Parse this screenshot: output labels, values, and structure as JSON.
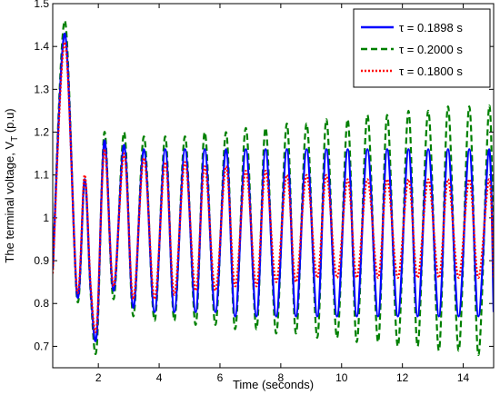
{
  "chart_data": {
    "type": "line",
    "xlabel": "Time (seconds)",
    "ylabel_main": "The terminal voltage, V",
    "ylabel_sub": "T",
    "ylabel_unit": " (p.u)",
    "xlim": [
      0.5,
      15
    ],
    "ylim": [
      0.65,
      1.5
    ],
    "xticks": [
      "2",
      "4",
      "6",
      "8",
      "10",
      "12",
      "14"
    ],
    "yticks": [
      "0.7",
      "0.8",
      "0.9",
      "1",
      "1.1",
      "1.2",
      "1.3",
      "1.4",
      "1.5"
    ],
    "legend_position": "top-right",
    "series": [
      {
        "name": "τ = 0.1898 s",
        "color": "#0000ff",
        "style": "solid",
        "x": [
          0.5,
          0.9,
          1.3,
          1.55,
          1.75,
          1.95,
          2.2,
          2.5,
          2.85,
          3.15,
          3.5,
          3.85,
          4.2,
          4.5,
          4.85,
          5.2,
          5.5,
          5.85,
          6.2,
          6.5,
          6.85,
          7.2,
          7.5,
          7.85,
          8.2,
          8.5,
          8.85,
          9.2,
          9.5,
          9.85,
          10.2,
          10.5,
          10.85,
          11.2,
          11.5,
          11.85,
          12.2,
          12.5,
          12.85,
          13.2,
          13.5,
          13.85,
          14.2,
          14.5,
          14.85,
          15.0
        ],
        "y": [
          0.88,
          1.43,
          0.82,
          1.09,
          0.83,
          0.73,
          1.18,
          0.83,
          1.17,
          0.79,
          1.16,
          0.78,
          1.16,
          0.78,
          1.16,
          0.78,
          1.16,
          0.78,
          1.16,
          0.77,
          1.16,
          0.77,
          1.16,
          0.77,
          1.16,
          0.77,
          1.16,
          0.77,
          1.16,
          0.77,
          1.16,
          0.77,
          1.16,
          0.77,
          1.16,
          0.77,
          1.16,
          0.77,
          1.16,
          0.77,
          1.16,
          0.77,
          1.16,
          0.77,
          1.16,
          0.78
        ]
      },
      {
        "name": "τ = 0.2000 s",
        "color": "#008000",
        "style": "dashed",
        "x": [
          0.5,
          0.9,
          1.3,
          1.55,
          1.75,
          1.95,
          2.2,
          2.5,
          2.85,
          3.15,
          3.5,
          3.85,
          4.2,
          4.5,
          4.85,
          5.2,
          5.5,
          5.85,
          6.2,
          6.5,
          6.85,
          7.2,
          7.5,
          7.85,
          8.2,
          8.5,
          8.85,
          9.2,
          9.5,
          9.85,
          10.2,
          10.5,
          10.85,
          11.2,
          11.5,
          11.85,
          12.2,
          12.5,
          12.85,
          13.2,
          13.5,
          13.85,
          14.2,
          14.5,
          14.85,
          15.0
        ],
        "y": [
          0.88,
          1.46,
          0.81,
          1.09,
          0.82,
          0.7,
          1.2,
          0.81,
          1.2,
          0.77,
          1.19,
          0.76,
          1.19,
          0.76,
          1.19,
          0.75,
          1.2,
          0.75,
          1.2,
          0.74,
          1.21,
          0.74,
          1.21,
          0.73,
          1.22,
          0.73,
          1.22,
          0.72,
          1.23,
          0.72,
          1.23,
          0.71,
          1.24,
          0.71,
          1.24,
          0.7,
          1.25,
          0.7,
          1.25,
          0.69,
          1.26,
          0.69,
          1.26,
          0.68,
          1.26,
          0.86
        ]
      },
      {
        "name": "τ = 0.1800 s",
        "color": "#ff0000",
        "style": "dotted",
        "x": [
          0.5,
          0.9,
          1.3,
          1.55,
          1.75,
          1.95,
          2.2,
          2.5,
          2.85,
          3.15,
          3.5,
          3.85,
          4.2,
          4.5,
          4.85,
          5.2,
          5.5,
          5.85,
          6.2,
          6.5,
          6.85,
          7.2,
          7.5,
          7.85,
          8.2,
          8.5,
          8.85,
          9.2,
          9.5,
          9.85,
          10.2,
          10.5,
          10.85,
          11.2,
          11.5,
          11.85,
          12.2,
          12.5,
          12.85,
          13.2,
          13.5,
          13.85,
          14.2,
          14.5,
          14.85,
          15.0
        ],
        "y": [
          0.87,
          1.41,
          0.83,
          1.1,
          0.84,
          0.75,
          1.16,
          0.84,
          1.15,
          0.81,
          1.14,
          0.81,
          1.13,
          0.82,
          1.13,
          0.83,
          1.12,
          0.83,
          1.12,
          0.84,
          1.11,
          0.84,
          1.11,
          0.85,
          1.1,
          0.85,
          1.1,
          0.86,
          1.1,
          0.86,
          1.09,
          0.86,
          1.09,
          0.86,
          1.09,
          0.86,
          1.09,
          0.86,
          1.09,
          0.86,
          1.09,
          0.86,
          1.09,
          0.86,
          1.09,
          0.86
        ]
      }
    ]
  }
}
